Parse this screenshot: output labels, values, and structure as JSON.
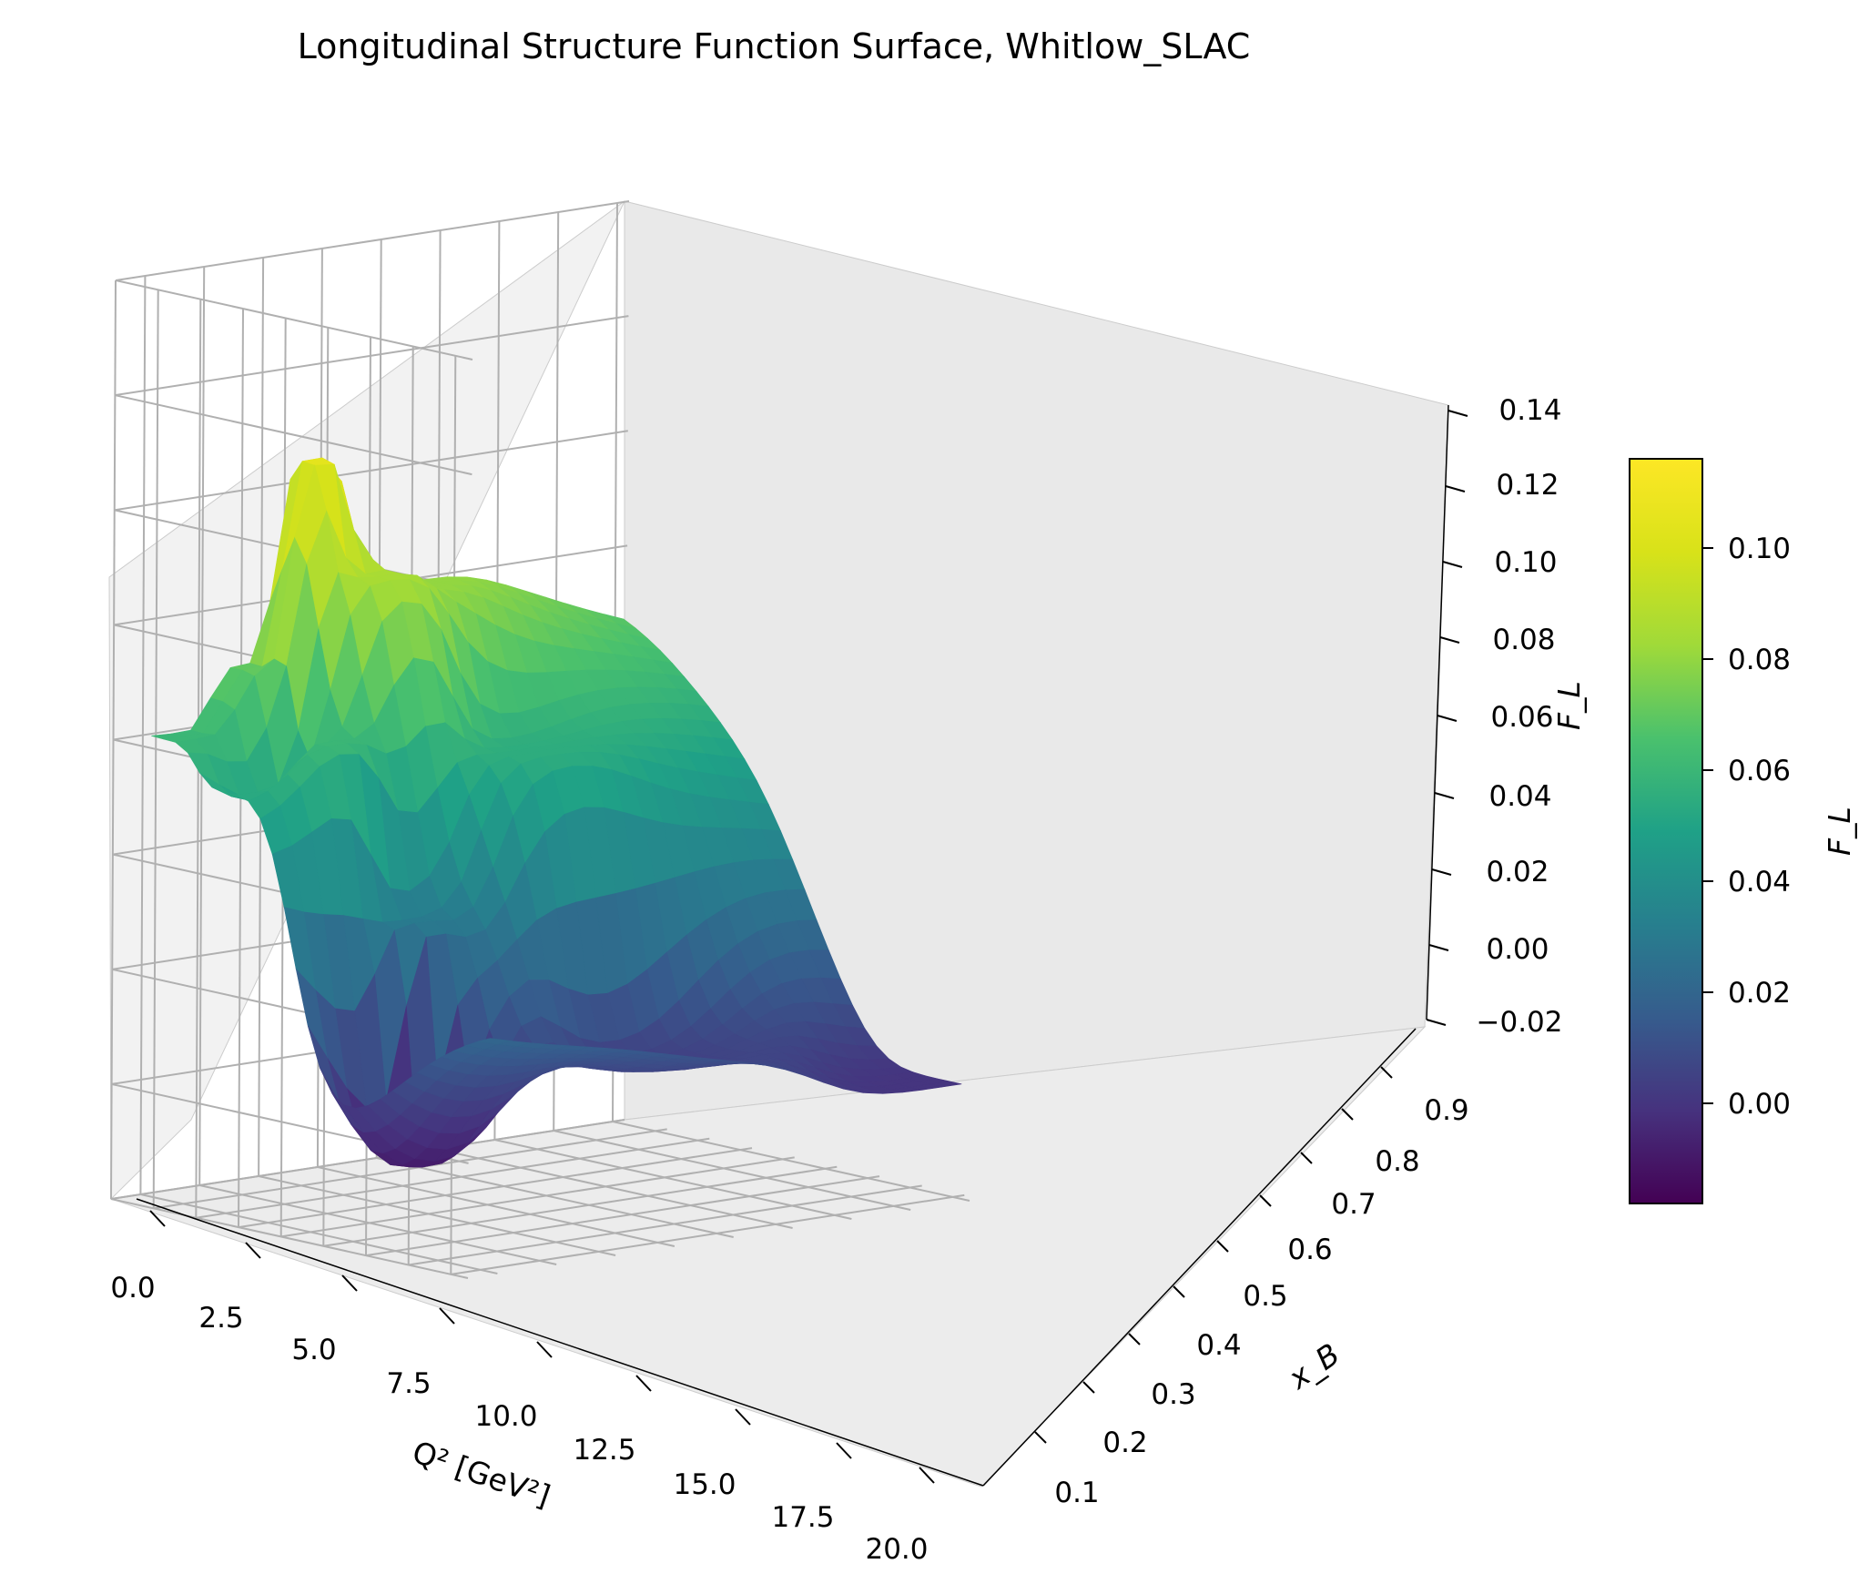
{
  "chart_data": {
    "type": "surface3d",
    "title": "Longitudinal Structure Function Surface, Whitlow_SLAC",
    "xlabel": "Q² [GeV²]",
    "ylabel": "x_B",
    "zlabel": "F_L",
    "xlim": [
      0,
      21
    ],
    "ylim": [
      0.05,
      0.92
    ],
    "zlim": [
      -0.02,
      0.14
    ],
    "x_ticks": [
      "0.0",
      "2.5",
      "5.0",
      "7.5",
      "10.0",
      "12.5",
      "15.0",
      "17.5",
      "20.0"
    ],
    "y_ticks": [
      "0.1",
      "0.2",
      "0.3",
      "0.4",
      "0.5",
      "0.6",
      "0.7",
      "0.8",
      "0.9"
    ],
    "z_ticks": [
      "−0.02",
      "0.00",
      "0.02",
      "0.04",
      "0.06",
      "0.08",
      "0.10",
      "0.12",
      "0.14"
    ],
    "colormap": "viridis",
    "colorbar": {
      "label": "F_L",
      "ticks": [
        "0.00",
        "0.02",
        "0.04",
        "0.06",
        "0.08",
        "0.10"
      ],
      "range": [
        -0.018,
        0.116
      ]
    },
    "grid": true,
    "surface": {
      "x_extent": [
        0.5,
        20.5
      ],
      "y_extent": [
        0.1,
        0.9
      ],
      "approx_values": [
        {
          "Q2": 1.0,
          "xB": 0.15,
          "F_L": 0.06
        },
        {
          "Q2": 1.0,
          "xB": 0.25,
          "F_L": 0.07
        },
        {
          "Q2": 1.5,
          "xB": 0.35,
          "F_L": 0.105
        },
        {
          "Q2": 1.0,
          "xB": 0.5,
          "F_L": 0.08
        },
        {
          "Q2": 3.0,
          "xB": 0.4,
          "F_L": 0.085
        },
        {
          "Q2": 4.0,
          "xB": 0.2,
          "F_L": 0.05
        },
        {
          "Q2": 6.0,
          "xB": 0.25,
          "F_L": 0.06
        },
        {
          "Q2": 7.0,
          "xB": 0.55,
          "F_L": 0.055
        },
        {
          "Q2": 9.0,
          "xB": 0.3,
          "F_L": 0.03
        },
        {
          "Q2": 11.0,
          "xB": 0.25,
          "F_L": -0.01
        },
        {
          "Q2": 14.0,
          "xB": 0.55,
          "F_L": 0.005
        },
        {
          "Q2": 20.0,
          "xB": 0.9,
          "F_L": 0.0
        }
      ]
    }
  }
}
